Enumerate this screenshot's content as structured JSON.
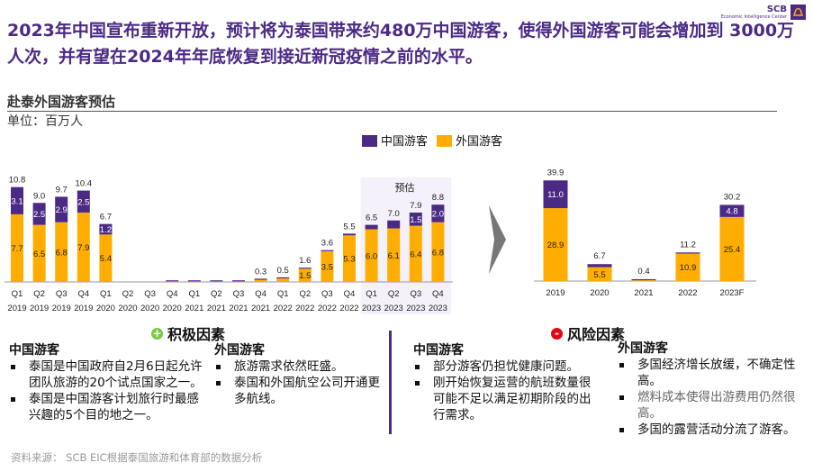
{
  "title": "2023年中国宣布重新开放，预计将为泰国带来约480万中国游客，使得外国游客可能会增加到 3000万人次，并有望在2024年年底恢复到接近新冠疫情之前的水平。",
  "logo": {
    "name": "SCB",
    "tagline": "Economic Intelligence Center"
  },
  "subtitle": "赴泰外国游客预估",
  "unit": "单位：百万人",
  "colors": {
    "chinese": "#4B2A85",
    "foreign": "#FFAD00",
    "accent": "#4B2A85"
  },
  "chart_data": [
    {
      "type": "bar",
      "stacked": true,
      "legend": [
        "中国游客",
        "外国游客"
      ],
      "legend_placement": "top",
      "annotation": "预估",
      "categories": [
        "Q1 2019",
        "Q2 2019",
        "Q3 2019",
        "Q4 2019",
        "Q1 2020",
        "Q2 2020",
        "Q3 2020",
        "Q4 2020",
        "Q1 2021",
        "Q2 2021",
        "Q3 2021",
        "Q4 2021",
        "Q1 2022",
        "Q2 2022",
        "Q3 2022",
        "Q4 2022",
        "Q1 2023",
        "Q2 2023",
        "Q3 2023",
        "Q4 2023"
      ],
      "tick_q": [
        "Q1",
        "Q2",
        "Q3",
        "Q4",
        "Q1",
        "Q2",
        "Q3",
        "Q4",
        "Q1",
        "Q2",
        "Q3",
        "Q4",
        "Q1",
        "Q2",
        "Q3",
        "Q4",
        "Q1",
        "Q2",
        "Q3",
        "Q4"
      ],
      "tick_y": [
        "2019",
        "2019",
        "2019",
        "2019",
        "2020",
        "2020",
        "2020",
        "2020",
        "2021",
        "2021",
        "2021",
        "2021",
        "2022",
        "2022",
        "2022",
        "2022",
        "2023",
        "2023",
        "2023",
        "2023"
      ],
      "series": [
        {
          "name": "外国游客",
          "values": [
            7.7,
            6.5,
            6.8,
            7.9,
            5.4,
            0,
            0,
            0.02,
            0.02,
            0.02,
            0.02,
            0.25,
            0.4,
            1.5,
            3.5,
            5.3,
            6.0,
            6.1,
            6.4,
            6.8
          ],
          "labels": [
            "7.7",
            "6.5",
            "6.8",
            "7.9",
            "5.4",
            null,
            null,
            null,
            null,
            null,
            null,
            null,
            null,
            "1.5",
            "3.5",
            "5.3",
            "6.0",
            "6.1",
            "6.4",
            "6.8"
          ]
        },
        {
          "name": "中国游客",
          "values": [
            3.1,
            2.5,
            2.9,
            2.5,
            1.2,
            0,
            0,
            0.02,
            0.02,
            0.02,
            0.02,
            0.05,
            0.1,
            0.1,
            0.1,
            0.2,
            0.5,
            0.9,
            1.5,
            2.0
          ],
          "labels": [
            "3.1",
            "2.5",
            "2.9",
            "2.5",
            "1.2",
            null,
            null,
            null,
            null,
            null,
            null,
            null,
            null,
            null,
            null,
            null,
            null,
            null,
            "1.5",
            "2.0"
          ]
        }
      ],
      "totals": [
        "10.8",
        "9.0",
        "9.7",
        "10.4",
        "6.7",
        null,
        null,
        null,
        null,
        null,
        null,
        "0.3",
        "0.5",
        "1.6",
        "3.6",
        "5.5",
        "6.5",
        "7.0",
        "7.9",
        "8.8"
      ],
      "forecast_from": "Q1 2023"
    },
    {
      "type": "bar",
      "stacked": true,
      "categories": [
        "2019",
        "2020",
        "2021",
        "2022",
        "2023F"
      ],
      "series": [
        {
          "name": "外国游客",
          "values": [
            28.9,
            5.5,
            0.3,
            10.9,
            25.4
          ],
          "labels": [
            "28.9",
            "5.5",
            null,
            "10.9",
            "25.4"
          ]
        },
        {
          "name": "中国游客",
          "values": [
            11.0,
            1.2,
            0.1,
            0.3,
            4.8
          ],
          "labels": [
            "11.0",
            null,
            null,
            null,
            "4.8"
          ]
        }
      ],
      "totals": [
        "39.9",
        "6.7",
        "0.4",
        "11.2",
        "30.2"
      ]
    }
  ],
  "positive": {
    "icon": "plus-icon",
    "title": "积极因素",
    "chinese": {
      "heading": "中国游客",
      "items": [
        "泰国是中国政府自2月6日起允许团队旅游的20个试点国家之一。",
        "泰国是中国游客计划旅行时最感兴趣的5个目的地之一。"
      ]
    },
    "foreign": {
      "heading": "外国游客",
      "items": [
        "旅游需求依然旺盛。",
        "泰国和外国航空公司开通更多航线。"
      ]
    }
  },
  "risk": {
    "icon": "minus-icon",
    "title": "风险因素",
    "chinese": {
      "heading": "中国游客",
      "items": [
        "部分游客仍担忧健康问题。",
        "刚开始恢复运营的航班数量很可能不足以满足初期阶段的出行需求。"
      ]
    },
    "foreign": {
      "heading": "外国游客",
      "items": [
        "多国经济增长放缓，不确定性高。",
        "燃料成本使得出游费用仍然很高。",
        "多国的露营活动分流了游客。"
      ]
    }
  },
  "source": "资料来源： SCB EIC根据泰国旅游和体育部的数据分析"
}
